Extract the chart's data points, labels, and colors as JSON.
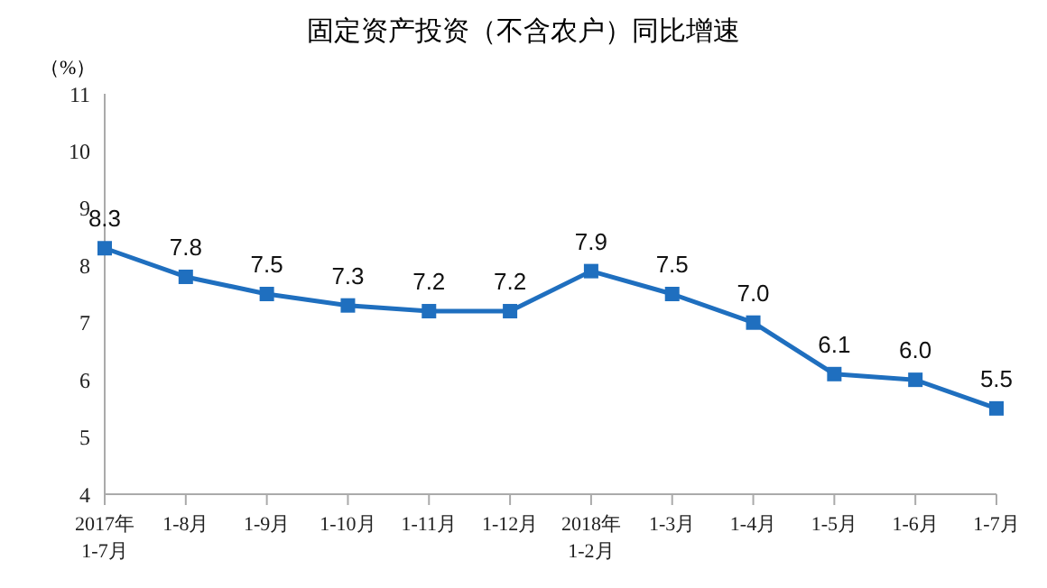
{
  "chart_data": {
    "type": "line",
    "title": "固定资产投资（不含农户）同比增速",
    "ylabel": "（%）",
    "categories": [
      "2017年\n1-7月",
      "1-8月",
      "1-9月",
      "1-10月",
      "1-11月",
      "1-12月",
      "2018年\n1-2月",
      "1-3月",
      "1-4月",
      "1-5月",
      "1-6月",
      "1-7月"
    ],
    "series": [
      {
        "color": "#1f6fbf",
        "values": [
          8.3,
          7.8,
          7.5,
          7.3,
          7.2,
          7.2,
          7.9,
          7.5,
          7.0,
          6.1,
          6.0,
          5.5
        ],
        "value_labels": [
          "8.3",
          "7.8",
          "7.5",
          "7.3",
          "7.2",
          "7.2",
          "7.9",
          "7.5",
          "7.0",
          "6.1",
          "6.0",
          "5.5"
        ]
      }
    ],
    "ylim": [
      4,
      11
    ],
    "yticks": [
      4,
      5,
      6,
      7,
      8,
      9,
      10,
      11
    ],
    "marker": "square",
    "line_style": "solid",
    "grid": false,
    "legend": false
  }
}
